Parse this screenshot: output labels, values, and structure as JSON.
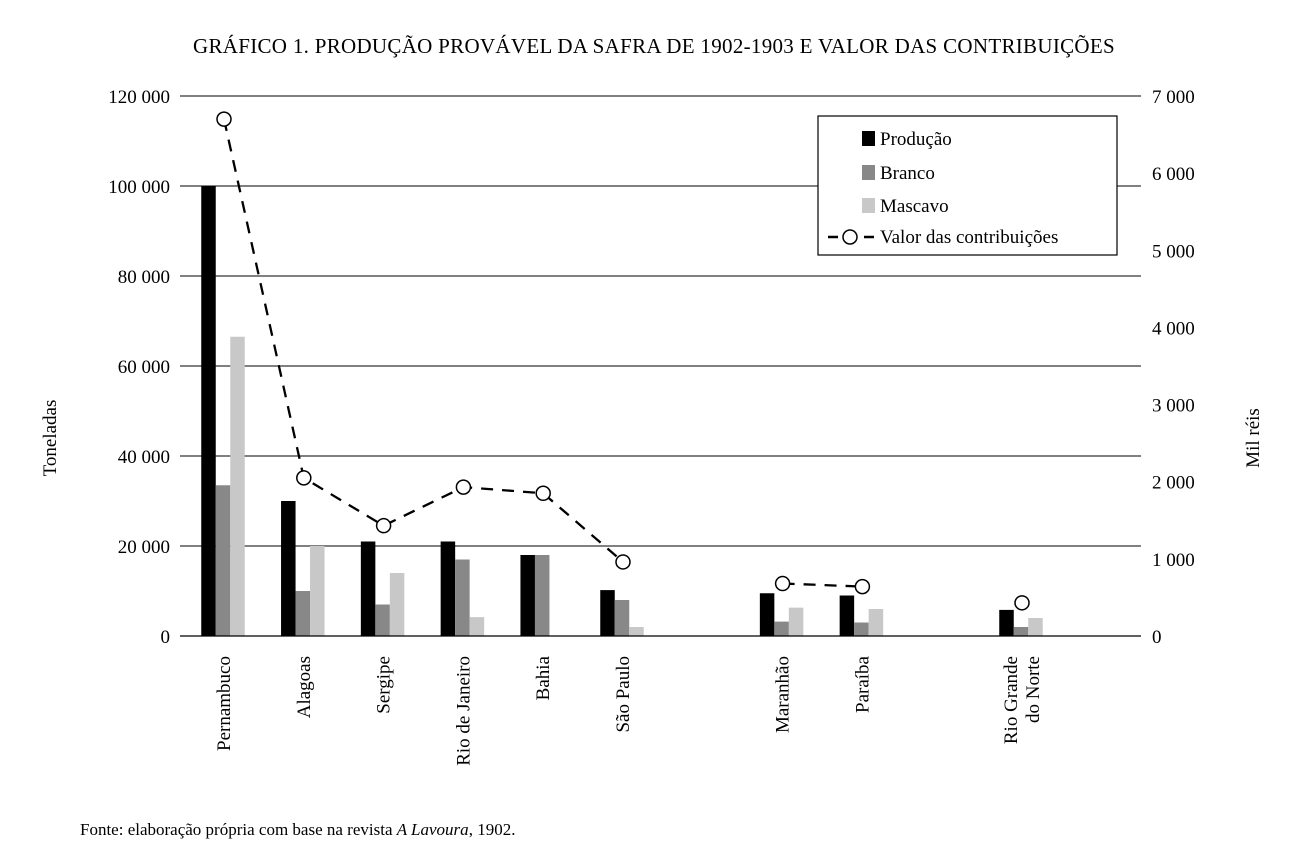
{
  "chart_data": {
    "type": "bar",
    "title": "GRÁFICO 1. PRODUÇÃO PROVÁVEL DA SAFRA DE 1902-1903 E VALOR DAS CONTRIBUIÇÕES",
    "ylabel_left": "Toneladas",
    "ylabel_right": "Mil réis",
    "ylim_left": [
      0,
      120000
    ],
    "ylim_right": [
      0,
      7000
    ],
    "yticks_left": [
      "0",
      "20 000",
      "40 000",
      "60 000",
      "80 000",
      "100 000",
      "120 000"
    ],
    "yticks_right": [
      "0",
      "1 000",
      "2 000",
      "3 000",
      "4 000",
      "5 000",
      "6 000",
      "7 000"
    ],
    "yticks_left_values": [
      0,
      20000,
      40000,
      60000,
      80000,
      100000,
      120000
    ],
    "yticks_right_values": [
      0,
      1000,
      2000,
      3000,
      4000,
      5000,
      6000,
      7000
    ],
    "grid": true,
    "legend_position": "top-right",
    "categories": [
      [
        "Pernambuco"
      ],
      [
        "Alagoas"
      ],
      [
        "Sergipe"
      ],
      [
        "Rio de Janeiro"
      ],
      [
        "Bahia"
      ],
      [
        "São Paulo"
      ],
      [
        "Maranhão"
      ],
      [
        "Paraíba"
      ],
      [
        "Rio Grande",
        "do Norte"
      ]
    ],
    "category_slots": [
      0,
      1,
      2,
      3,
      4,
      5,
      7,
      8,
      10
    ],
    "series": [
      {
        "name": "Produção",
        "color": "#000000",
        "axis": "left",
        "values": [
          100000,
          30000,
          21000,
          21000,
          18000,
          10200,
          9500,
          9000,
          5800
        ]
      },
      {
        "name": "Branco",
        "color": "#888888",
        "axis": "left",
        "values": [
          33500,
          10000,
          7000,
          17000,
          18000,
          8000,
          3200,
          3000,
          2000
        ]
      },
      {
        "name": "Mascavo",
        "color": "#c8c8c8",
        "axis": "left",
        "values": [
          66500,
          20000,
          14000,
          4200,
          0,
          2000,
          6300,
          6000,
          4000
        ]
      }
    ],
    "line_series": {
      "name": "Valor das contribuições",
      "axis": "right",
      "style": "dashed",
      "marker": "open-circle",
      "values": [
        6700,
        2050,
        1430,
        1930,
        1850,
        960,
        680,
        640,
        430
      ]
    }
  },
  "source": {
    "prefix": "Fonte: elaboração própria com base na revista ",
    "italic": "A Lavoura",
    "suffix": ", 1902."
  }
}
